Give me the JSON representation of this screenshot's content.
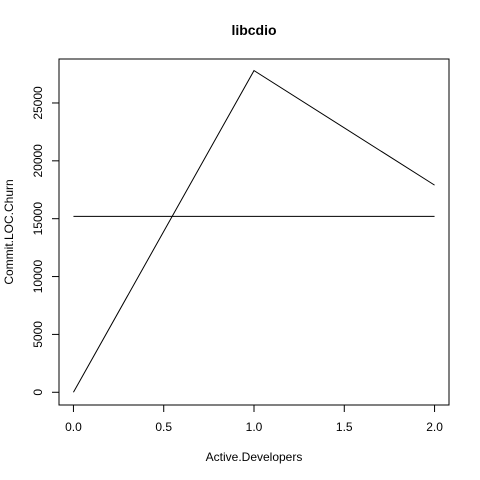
{
  "chart_data": {
    "type": "line",
    "title": "libcdio",
    "xlabel": "Active.Developers",
    "ylabel": "Commit.LOC.Churn",
    "xlim": [
      -0.08,
      2.08
    ],
    "ylim": [
      -1100,
      28800
    ],
    "x_ticks": [
      0,
      0.5,
      1,
      1.5,
      2
    ],
    "x_tick_labels": [
      "0.0",
      "0.5",
      "1.0",
      "1.5",
      "2.0"
    ],
    "y_ticks": [
      0,
      5000,
      10000,
      15000,
      20000,
      25000
    ],
    "y_tick_labels": [
      "0",
      "5000",
      "10000",
      "15000",
      "20000",
      "25000"
    ],
    "grid": false,
    "series": [
      {
        "x": [
          0,
          1,
          2
        ],
        "values": [
          0,
          27800,
          17900
        ],
        "color": "#000000"
      },
      {
        "x": [
          0,
          2
        ],
        "values": [
          15200,
          15200
        ],
        "color": "#000000"
      }
    ]
  }
}
